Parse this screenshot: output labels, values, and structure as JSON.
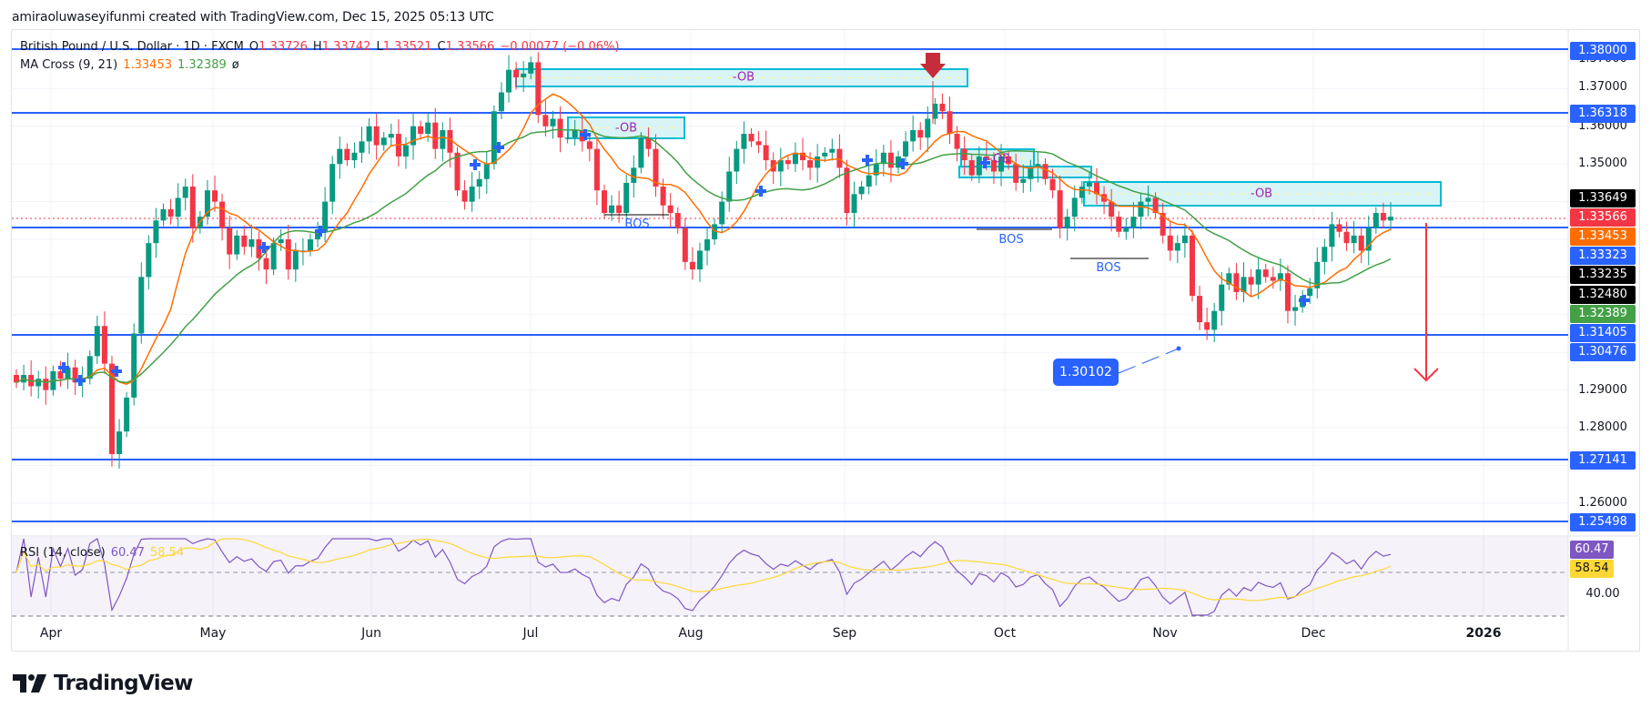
{
  "header": {
    "credit": "amiraoluwaseyifunmi created with TradingView.com, Dec 15, 2025 05:13 UTC"
  },
  "legend": {
    "symbol": "British Pound / U.S. Dollar · 1D · FXCM",
    "open_label": "O",
    "open": "1.33726",
    "high_label": "H",
    "high": "1.33742",
    "low_label": "L",
    "low": "1.33521",
    "close_label": "C",
    "close": "1.33566",
    "change": "−0.00077 (−0.06%)",
    "ma_name": "MA Cross (9, 21)",
    "ma_fast": "1.33453",
    "ma_slow": "1.32389",
    "ma_extra": "ø",
    "rsi_name": "RSI (14, close)",
    "rsi_value": "60.47",
    "rsi_ma": "58.54"
  },
  "price_axis": {
    "ticks": [
      "1.37000",
      "1.36000",
      "1.35000",
      "1.29000",
      "1.28000",
      "1.26000"
    ],
    "tags": [
      {
        "label": "1.38000",
        "color": "#2962ff"
      },
      {
        "label": "1.36318",
        "color": "#2962ff"
      },
      {
        "label": "1.33649",
        "color": "#000000"
      },
      {
        "label": "1.33566",
        "color": "#f23645"
      },
      {
        "label": "1.33453",
        "color": "#ff6d00"
      },
      {
        "label": "1.33323",
        "color": "#2962ff"
      },
      {
        "label": "1.33235",
        "color": "#000000"
      },
      {
        "label": "1.32480",
        "color": "#000000"
      },
      {
        "label": "1.32389",
        "color": "#43a047"
      },
      {
        "label": "1.31405",
        "color": "#2962ff"
      },
      {
        "label": "1.30476",
        "color": "#2962ff"
      },
      {
        "label": "1.27141",
        "color": "#2962ff"
      },
      {
        "label": "1.25498",
        "color": "#2962ff"
      }
    ],
    "rsi_ticks": [
      "40.00"
    ],
    "rsi_tags": [
      {
        "label": "60.47",
        "color": "#7e57c2"
      },
      {
        "label": "58.54",
        "color": "#fdd835"
      }
    ]
  },
  "time_axis": {
    "labels": [
      "Apr",
      "May",
      "Jun",
      "Jul",
      "Aug",
      "Sep",
      "Oct",
      "Nov",
      "Dec",
      "2026"
    ]
  },
  "annotations": {
    "ob_label": "-OB",
    "bos_label": "BOS",
    "callout_value": "1.30102"
  },
  "colors": {
    "up": "#089981",
    "down": "#f23645",
    "level": "#2962ff",
    "ma_fast": "#ff6d00",
    "ma_slow": "#43a047",
    "rsi": "#7e57c2",
    "rsi_ma": "#fdd835",
    "ob_fill": "#d1f2f5",
    "ob_border": "#00bcd4"
  },
  "logo": {
    "text": "TradingView"
  },
  "chart_data": {
    "type": "candlestick",
    "title": "British Pound / U.S. Dollar · 1D · FXCM",
    "ohlc_last": {
      "open": 1.33726,
      "high": 1.33742,
      "low": 1.33521,
      "close": 1.33566,
      "change": -0.00077,
      "change_pct": -0.06
    },
    "x_labels": [
      "Apr",
      "May",
      "Jun",
      "Jul",
      "Aug",
      "Sep",
      "Oct",
      "Nov",
      "Dec",
      "2026"
    ],
    "ylim": [
      1.245,
      1.385
    ],
    "y_ticks": [
      1.26,
      1.27,
      1.28,
      1.29,
      1.3,
      1.31,
      1.32,
      1.33,
      1.34,
      1.35,
      1.36,
      1.37,
      1.38
    ],
    "horizontal_levels": [
      1.38,
      1.36318,
      1.33323,
      1.31405,
      1.30476,
      1.27141,
      1.25498
    ],
    "indicators": {
      "ma_cross": {
        "fast_period": 9,
        "slow_period": 21,
        "fast": 1.33453,
        "slow": 1.32389
      },
      "rsi": {
        "period": 14,
        "value": 60.47,
        "ma": 58.54
      }
    },
    "approx_closes": [
      1.292,
      1.294,
      1.291,
      1.293,
      1.29,
      1.295,
      1.293,
      1.296,
      1.292,
      1.293,
      1.299,
      1.307,
      1.297,
      1.273,
      1.279,
      1.288,
      1.305,
      1.32,
      1.329,
      1.335,
      1.338,
      1.336,
      1.341,
      1.344,
      1.333,
      1.336,
      1.343,
      1.34,
      1.333,
      1.326,
      1.331,
      1.328,
      1.33,
      1.325,
      1.322,
      1.329,
      1.33,
      1.322,
      1.327,
      1.327,
      1.33,
      1.332,
      1.34,
      1.35,
      1.354,
      1.351,
      1.353,
      1.356,
      1.36,
      1.355,
      1.357,
      1.358,
      1.352,
      1.355,
      1.36,
      1.358,
      1.361,
      1.354,
      1.359,
      1.353,
      1.343,
      1.34,
      1.344,
      1.346,
      1.35,
      1.364,
      1.369,
      1.375,
      1.373,
      1.374,
      1.377,
      1.363,
      1.36,
      1.362,
      1.357,
      1.357,
      1.359,
      1.356,
      1.354,
      1.343,
      1.337,
      1.339,
      1.337,
      1.345,
      1.349,
      1.357,
      1.354,
      1.344,
      1.339,
      1.337,
      1.333,
      1.324,
      1.322,
      1.327,
      1.33,
      1.334,
      1.34,
      1.348,
      1.354,
      1.358,
      1.356,
      1.355,
      1.351,
      1.348,
      1.351,
      1.35,
      1.353,
      1.351,
      1.349,
      1.352,
      1.353,
      1.354,
      1.349,
      1.337,
      1.342,
      1.344,
      1.347,
      1.35,
      1.353,
      1.349,
      1.352,
      1.356,
      1.359,
      1.357,
      1.362,
      1.366,
      1.364,
      1.358,
      1.354,
      1.351,
      1.347,
      1.352,
      1.351,
      1.348,
      1.352,
      1.35,
      1.345,
      1.346,
      1.349,
      1.35,
      1.346,
      1.343,
      1.333,
      1.336,
      1.341,
      1.344,
      1.345,
      1.342,
      1.34,
      1.336,
      1.332,
      1.333,
      1.336,
      1.34,
      1.341,
      1.337,
      1.331,
      1.327,
      1.329,
      1.331,
      1.315,
      1.308,
      1.306,
      1.311,
      1.318,
      1.321,
      1.316,
      1.32,
      1.318,
      1.322,
      1.32,
      1.319,
      1.321,
      1.311,
      1.312,
      1.315,
      1.317,
      1.324,
      1.328,
      1.334,
      1.332,
      1.329,
      1.331,
      1.327,
      1.333,
      1.337,
      1.335,
      1.336
    ]
  }
}
